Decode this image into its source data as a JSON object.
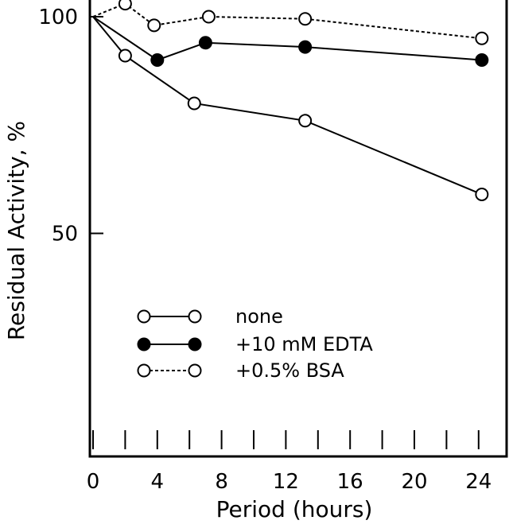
{
  "chart_data": {
    "type": "line",
    "xlabel": "Period (hours)",
    "ylabel": "Residual Activity, %",
    "xlim": [
      0,
      26
    ],
    "ylim": [
      0,
      102
    ],
    "x_ticks": [
      0,
      4,
      8,
      12,
      16,
      20,
      24
    ],
    "x_minor_ticks": [
      0,
      2,
      4,
      6,
      8,
      10,
      12,
      14,
      16,
      18,
      20,
      22,
      24
    ],
    "y_ticks": [
      50,
      100
    ],
    "grid": false,
    "legend_position": "lower-left",
    "series": [
      {
        "name": "none",
        "marker": "open-circle",
        "line_style": "solid",
        "points": [
          [
            0,
            100
          ],
          [
            2,
            91
          ],
          [
            6.3,
            80
          ],
          [
            13.2,
            76
          ],
          [
            24.2,
            59
          ]
        ]
      },
      {
        "name": "+10 mM EDTA",
        "marker": "filled-circle",
        "line_style": "solid",
        "points": [
          [
            0,
            100
          ],
          [
            4,
            90
          ],
          [
            7,
            94
          ],
          [
            13.2,
            93
          ],
          [
            24.2,
            90
          ]
        ]
      },
      {
        "name": "+0.5% BSA",
        "marker": "open-circle",
        "line_style": "dashed",
        "points": [
          [
            0,
            100
          ],
          [
            2,
            103
          ],
          [
            3.8,
            98
          ],
          [
            7.2,
            100
          ],
          [
            13.2,
            99.5
          ],
          [
            24.2,
            95
          ]
        ]
      }
    ],
    "colors": {
      "axis": "#000000",
      "marker_fill_open": "#ffffff",
      "marker_fill_filled": "#000000"
    }
  }
}
